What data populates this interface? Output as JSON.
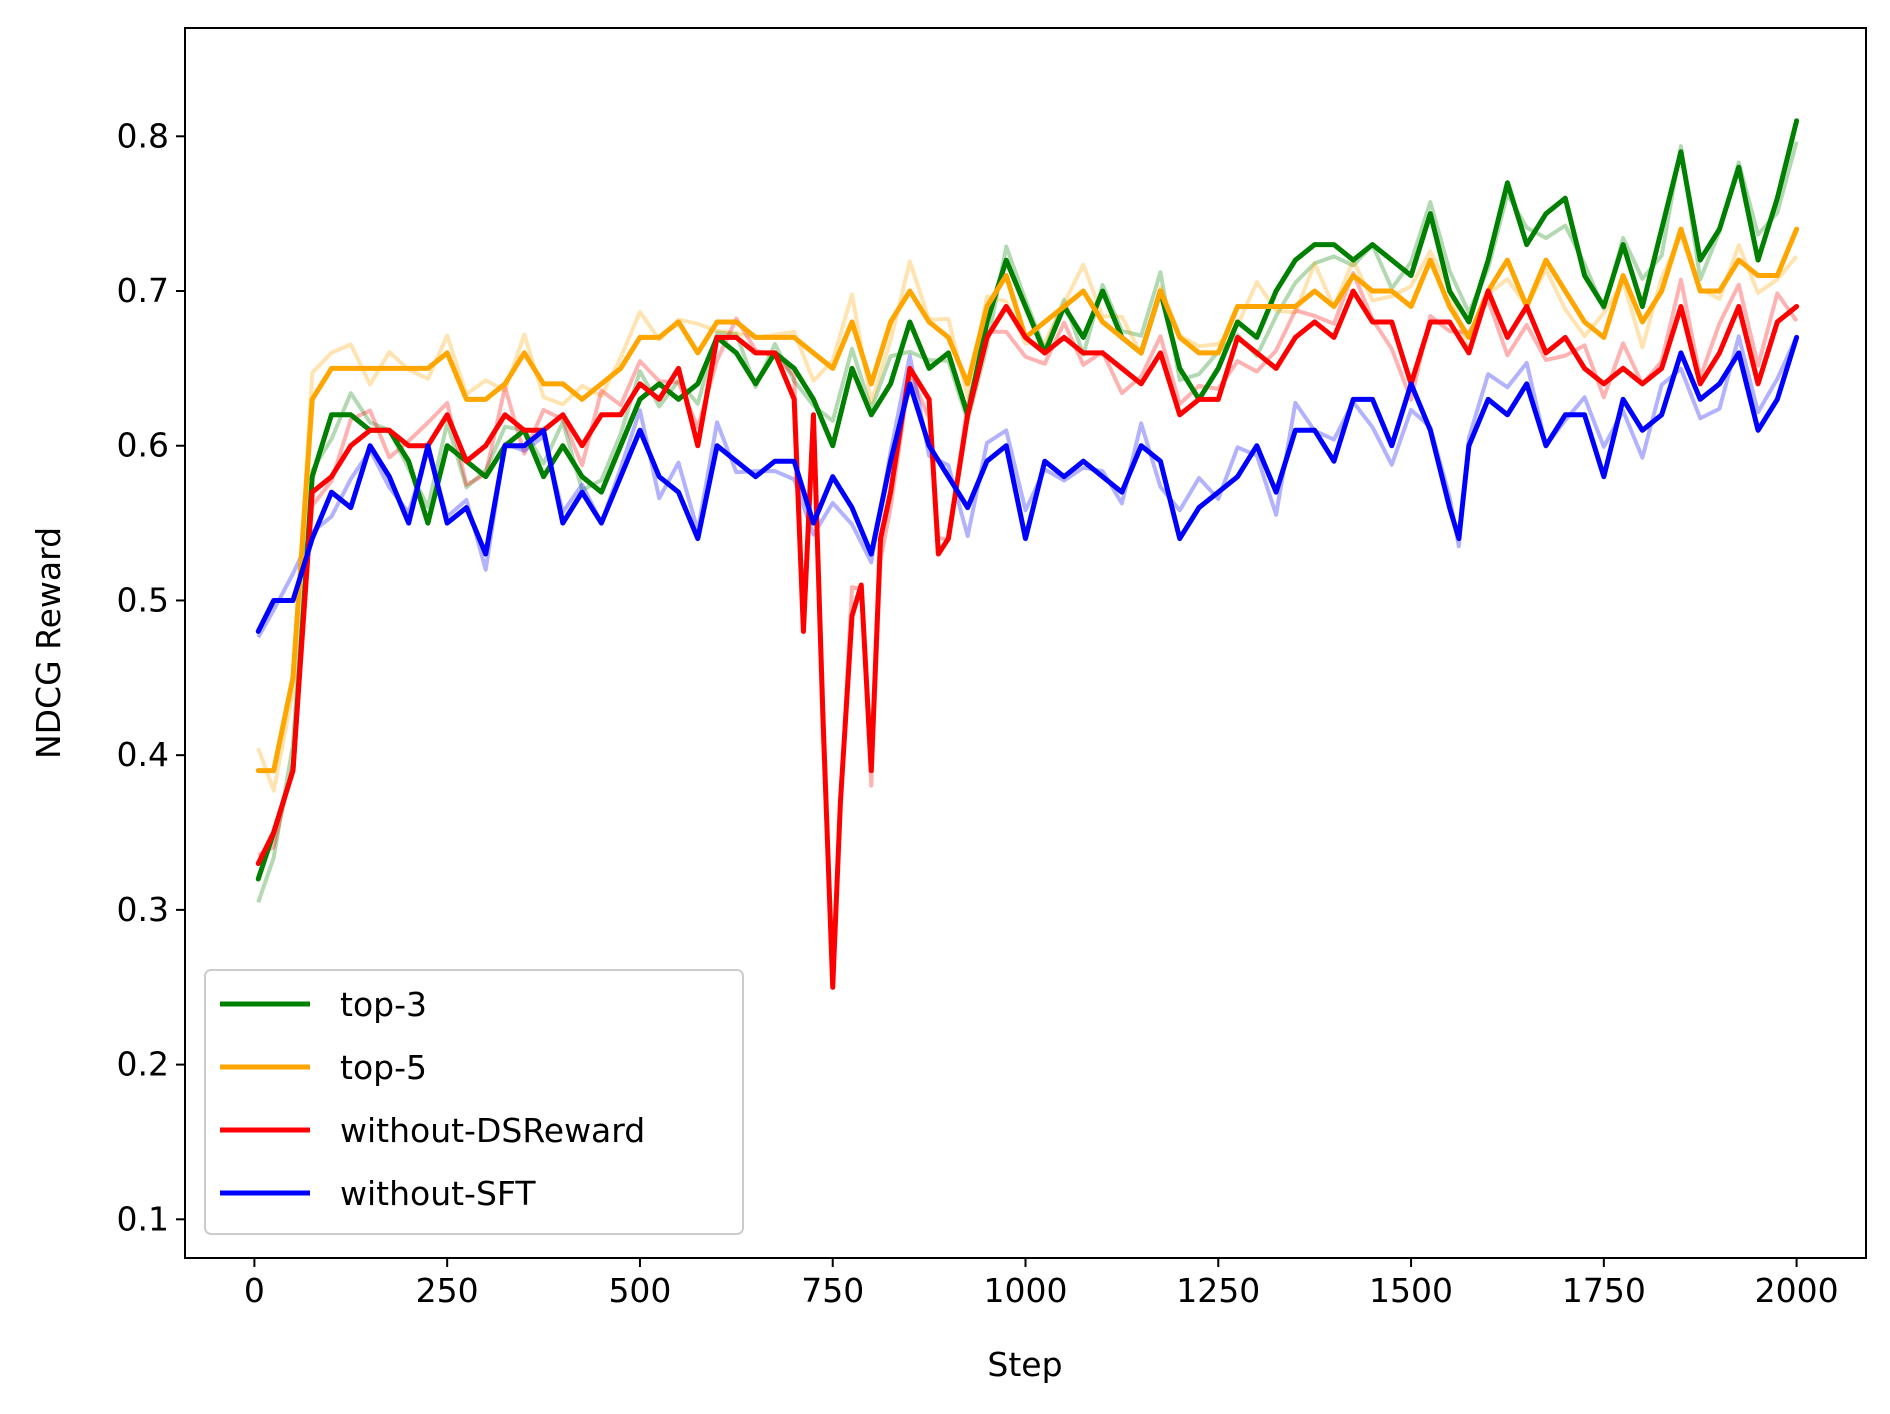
{
  "chart_data": {
    "type": "line",
    "title": "",
    "xlabel": "Step",
    "ylabel": "NDCG Reward",
    "xlim": [
      -90,
      2090
    ],
    "ylim": [
      0.075,
      0.87
    ],
    "xticks": [
      0,
      250,
      500,
      750,
      1000,
      1250,
      1500,
      1750,
      2000
    ],
    "xtick_labels": [
      "0",
      "250",
      "500",
      "750",
      "1000",
      "1250",
      "1500",
      "1750",
      "2000"
    ],
    "yticks": [
      0.1,
      0.2,
      0.3,
      0.4,
      0.5,
      0.6,
      0.7,
      0.8
    ],
    "ytick_labels": [
      "0.1",
      "0.2",
      "0.3",
      "0.4",
      "0.5",
      "0.6",
      "0.7",
      "0.8"
    ],
    "grid": false,
    "legend_position": "lower-left",
    "series": [
      {
        "name": "top-3",
        "color": "#008000",
        "x": [
          5,
          25,
          50,
          75,
          100,
          125,
          150,
          175,
          200,
          225,
          250,
          275,
          300,
          325,
          350,
          375,
          400,
          425,
          450,
          475,
          500,
          525,
          550,
          575,
          600,
          625,
          650,
          675,
          700,
          725,
          750,
          775,
          800,
          825,
          850,
          875,
          900,
          925,
          950,
          975,
          1000,
          1025,
          1050,
          1075,
          1100,
          1125,
          1150,
          1175,
          1200,
          1225,
          1250,
          1275,
          1300,
          1325,
          1350,
          1375,
          1400,
          1425,
          1450,
          1475,
          1500,
          1525,
          1550,
          1575,
          1600,
          1625,
          1650,
          1675,
          1700,
          1725,
          1750,
          1775,
          1800,
          1825,
          1850,
          1875,
          1900,
          1925,
          1950,
          1975,
          2000
        ],
        "values": [
          0.32,
          0.35,
          0.39,
          0.58,
          0.62,
          0.62,
          0.61,
          0.61,
          0.59,
          0.55,
          0.6,
          0.59,
          0.58,
          0.6,
          0.61,
          0.58,
          0.6,
          0.58,
          0.57,
          0.6,
          0.63,
          0.64,
          0.63,
          0.64,
          0.67,
          0.66,
          0.64,
          0.66,
          0.65,
          0.63,
          0.6,
          0.65,
          0.62,
          0.64,
          0.68,
          0.65,
          0.66,
          0.62,
          0.68,
          0.72,
          0.69,
          0.66,
          0.69,
          0.67,
          0.7,
          0.67,
          0.66,
          0.7,
          0.65,
          0.63,
          0.65,
          0.68,
          0.67,
          0.7,
          0.72,
          0.73,
          0.73,
          0.72,
          0.73,
          0.72,
          0.71,
          0.75,
          0.7,
          0.68,
          0.72,
          0.77,
          0.73,
          0.75,
          0.76,
          0.71,
          0.69,
          0.73,
          0.69,
          0.74,
          0.79,
          0.72,
          0.74,
          0.78,
          0.72,
          0.76,
          0.81
        ]
      },
      {
        "name": "top-5",
        "color": "#ffa500",
        "x": [
          5,
          25,
          50,
          75,
          100,
          125,
          150,
          175,
          200,
          225,
          250,
          275,
          300,
          325,
          350,
          375,
          400,
          425,
          450,
          475,
          500,
          525,
          550,
          575,
          600,
          625,
          650,
          675,
          700,
          725,
          750,
          775,
          800,
          825,
          850,
          875,
          900,
          925,
          950,
          975,
          1000,
          1025,
          1050,
          1075,
          1100,
          1125,
          1150,
          1175,
          1200,
          1225,
          1250,
          1275,
          1300,
          1325,
          1350,
          1375,
          1400,
          1425,
          1450,
          1475,
          1500,
          1525,
          1550,
          1575,
          1600,
          1625,
          1650,
          1675,
          1700,
          1725,
          1750,
          1775,
          1800,
          1825,
          1850,
          1875,
          1900,
          1925,
          1950,
          1975,
          2000
        ],
        "values": [
          0.39,
          0.39,
          0.45,
          0.63,
          0.65,
          0.65,
          0.65,
          0.65,
          0.65,
          0.65,
          0.66,
          0.63,
          0.63,
          0.64,
          0.66,
          0.64,
          0.64,
          0.63,
          0.64,
          0.65,
          0.67,
          0.67,
          0.68,
          0.66,
          0.68,
          0.68,
          0.67,
          0.67,
          0.67,
          0.66,
          0.65,
          0.68,
          0.64,
          0.68,
          0.7,
          0.68,
          0.67,
          0.64,
          0.69,
          0.71,
          0.67,
          0.68,
          0.69,
          0.7,
          0.68,
          0.67,
          0.66,
          0.7,
          0.67,
          0.66,
          0.66,
          0.69,
          0.69,
          0.69,
          0.69,
          0.7,
          0.69,
          0.71,
          0.7,
          0.7,
          0.69,
          0.72,
          0.69,
          0.67,
          0.7,
          0.72,
          0.69,
          0.72,
          0.7,
          0.68,
          0.67,
          0.71,
          0.68,
          0.7,
          0.74,
          0.7,
          0.7,
          0.72,
          0.71,
          0.71,
          0.74
        ]
      },
      {
        "name": "without-DSReward",
        "color": "#ff0000",
        "x": [
          5,
          25,
          50,
          75,
          100,
          125,
          150,
          175,
          200,
          225,
          250,
          275,
          300,
          325,
          350,
          375,
          400,
          425,
          450,
          475,
          500,
          525,
          550,
          575,
          600,
          625,
          650,
          675,
          700,
          712,
          725,
          737,
          750,
          760,
          775,
          787,
          800,
          812,
          825,
          850,
          875,
          887,
          900,
          925,
          950,
          975,
          1000,
          1025,
          1050,
          1075,
          1100,
          1125,
          1150,
          1175,
          1200,
          1225,
          1250,
          1275,
          1300,
          1325,
          1350,
          1375,
          1400,
          1425,
          1450,
          1475,
          1500,
          1525,
          1550,
          1575,
          1600,
          1625,
          1650,
          1675,
          1700,
          1725,
          1750,
          1775,
          1800,
          1825,
          1850,
          1875,
          1900,
          1925,
          1950,
          1975,
          2000
        ],
        "values": [
          0.33,
          0.35,
          0.39,
          0.57,
          0.58,
          0.6,
          0.61,
          0.61,
          0.6,
          0.6,
          0.62,
          0.59,
          0.6,
          0.62,
          0.61,
          0.61,
          0.62,
          0.6,
          0.62,
          0.62,
          0.64,
          0.63,
          0.65,
          0.6,
          0.67,
          0.67,
          0.66,
          0.66,
          0.63,
          0.48,
          0.62,
          0.43,
          0.25,
          0.37,
          0.49,
          0.51,
          0.39,
          0.54,
          0.57,
          0.65,
          0.63,
          0.53,
          0.54,
          0.62,
          0.67,
          0.69,
          0.67,
          0.66,
          0.67,
          0.66,
          0.66,
          0.65,
          0.64,
          0.66,
          0.62,
          0.63,
          0.63,
          0.67,
          0.66,
          0.65,
          0.67,
          0.68,
          0.67,
          0.7,
          0.68,
          0.68,
          0.64,
          0.68,
          0.68,
          0.66,
          0.7,
          0.67,
          0.69,
          0.66,
          0.67,
          0.65,
          0.64,
          0.65,
          0.64,
          0.65,
          0.69,
          0.64,
          0.66,
          0.69,
          0.64,
          0.68,
          0.69
        ]
      },
      {
        "name": "without-SFT",
        "color": "#0000ff",
        "x": [
          5,
          25,
          50,
          75,
          100,
          125,
          150,
          175,
          200,
          225,
          250,
          275,
          300,
          325,
          350,
          375,
          400,
          425,
          450,
          475,
          500,
          525,
          550,
          575,
          600,
          625,
          650,
          675,
          700,
          725,
          750,
          775,
          800,
          825,
          850,
          875,
          900,
          925,
          950,
          975,
          1000,
          1025,
          1050,
          1075,
          1100,
          1125,
          1150,
          1175,
          1200,
          1225,
          1250,
          1275,
          1300,
          1325,
          1350,
          1375,
          1400,
          1425,
          1450,
          1475,
          1500,
          1525,
          1550,
          1562,
          1575,
          1600,
          1625,
          1650,
          1675,
          1700,
          1725,
          1750,
          1775,
          1800,
          1825,
          1850,
          1875,
          1900,
          1925,
          1950,
          1975,
          2000
        ],
        "values": [
          0.48,
          0.5,
          0.5,
          0.54,
          0.57,
          0.56,
          0.6,
          0.58,
          0.55,
          0.6,
          0.55,
          0.56,
          0.53,
          0.6,
          0.6,
          0.61,
          0.55,
          0.57,
          0.55,
          0.58,
          0.61,
          0.58,
          0.57,
          0.54,
          0.6,
          0.59,
          0.58,
          0.59,
          0.59,
          0.55,
          0.58,
          0.56,
          0.53,
          0.59,
          0.64,
          0.6,
          0.58,
          0.56,
          0.59,
          0.6,
          0.54,
          0.59,
          0.58,
          0.59,
          0.58,
          0.57,
          0.6,
          0.59,
          0.54,
          0.56,
          0.57,
          0.58,
          0.6,
          0.57,
          0.61,
          0.61,
          0.59,
          0.63,
          0.63,
          0.6,
          0.64,
          0.61,
          0.56,
          0.54,
          0.6,
          0.63,
          0.62,
          0.64,
          0.6,
          0.62,
          0.62,
          0.58,
          0.63,
          0.61,
          0.62,
          0.66,
          0.63,
          0.64,
          0.66,
          0.61,
          0.63,
          0.67
        ]
      }
    ]
  }
}
